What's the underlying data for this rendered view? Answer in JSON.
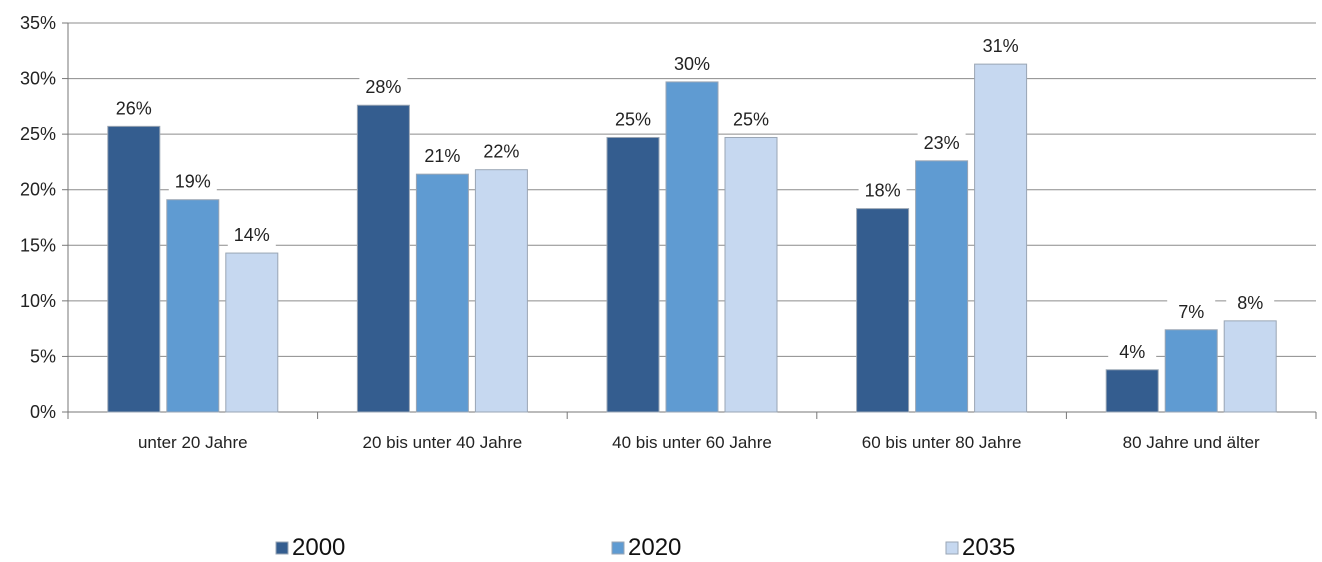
{
  "chart_data": {
    "type": "bar",
    "categories": [
      "unter 20 Jahre",
      "20 bis unter 40 Jahre",
      "40 bis unter 60 Jahre",
      "60 bis unter 80 Jahre",
      "80 Jahre und älter"
    ],
    "series": [
      {
        "name": "2000",
        "color": "#345d8f",
        "values": [
          25.7,
          27.6,
          24.7,
          18.3,
          3.8
        ],
        "labels": [
          "26%",
          "28%",
          "25%",
          "18%",
          "4%"
        ]
      },
      {
        "name": "2020",
        "color": "#5f9bd2",
        "values": [
          19.1,
          21.4,
          29.7,
          22.6,
          7.4
        ],
        "labels": [
          "19%",
          "21%",
          "30%",
          "23%",
          "7%"
        ]
      },
      {
        "name": "2035",
        "color": "#c6d8f0",
        "values": [
          14.3,
          21.8,
          24.7,
          31.3,
          8.2
        ],
        "labels": [
          "14%",
          "22%",
          "25%",
          "31%",
          "8%"
        ]
      }
    ],
    "y_ticks": [
      "0%",
      "5%",
      "10%",
      "15%",
      "20%",
      "25%",
      "30%",
      "35%"
    ],
    "ylim": [
      0,
      35
    ],
    "y_step": 5,
    "grid": true,
    "legend_position": "bottom",
    "title": "",
    "xlabel": "",
    "ylabel": ""
  }
}
